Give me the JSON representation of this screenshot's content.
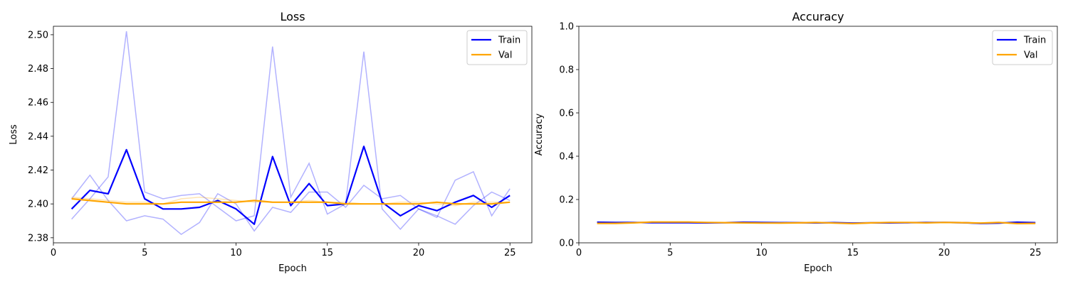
{
  "chart_data": [
    {
      "type": "line",
      "title": "Loss",
      "xlabel": "Epoch",
      "ylabel": "Loss",
      "xlim": [
        0,
        26.2
      ],
      "ylim": [
        2.377,
        2.505
      ],
      "xticks": [
        0,
        5,
        10,
        15,
        20,
        25
      ],
      "yticks": [
        2.38,
        2.4,
        2.42,
        2.44,
        2.46,
        2.48,
        2.5
      ],
      "ytick_labels": [
        "2.38",
        "2.40",
        "2.42",
        "2.44",
        "2.46",
        "2.48",
        "2.50"
      ],
      "legend": {
        "placement": "top-right",
        "entries": [
          "Train",
          "Val"
        ]
      },
      "x": [
        1,
        2,
        3,
        4,
        5,
        6,
        7,
        8,
        9,
        10,
        11,
        12,
        13,
        14,
        15,
        16,
        17,
        18,
        19,
        20,
        21,
        22,
        23,
        24,
        25
      ],
      "series": [
        {
          "name": "Train",
          "color": "#0000ff",
          "values": [
            2.397,
            2.408,
            2.406,
            2.432,
            2.403,
            2.397,
            2.397,
            2.398,
            2.402,
            2.397,
            2.388,
            2.428,
            2.399,
            2.412,
            2.399,
            2.4,
            2.434,
            2.401,
            2.393,
            2.399,
            2.396,
            2.401,
            2.405,
            2.398,
            2.405
          ]
        },
        {
          "name": "Val",
          "color": "#ffa500",
          "values": [
            2.403,
            2.402,
            2.401,
            2.4,
            2.4,
            2.4,
            2.401,
            2.401,
            2.401,
            2.401,
            2.402,
            2.401,
            2.401,
            2.401,
            2.401,
            2.4,
            2.4,
            2.4,
            2.4,
            2.4,
            2.401,
            2.4,
            2.4,
            2.4,
            2.401
          ]
        }
      ],
      "background_runs": [
        {
          "color": "#0000ff",
          "values": [
            2.391,
            2.403,
            2.416,
            2.502,
            2.407,
            2.403,
            2.405,
            2.406,
            2.398,
            2.39,
            2.393,
            2.493,
            2.404,
            2.424,
            2.394,
            2.4,
            2.49,
            2.397,
            2.385,
            2.397,
            2.393,
            2.388,
            2.399,
            2.407,
            2.402
          ]
        },
        {
          "color": "#0000ff",
          "values": [
            2.403,
            2.417,
            2.402,
            2.39,
            2.393,
            2.391,
            2.382,
            2.389,
            2.406,
            2.4,
            2.384,
            2.398,
            2.395,
            2.407,
            2.407,
            2.398,
            2.411,
            2.403,
            2.405,
            2.397,
            2.392,
            2.414,
            2.419,
            2.393,
            2.409
          ]
        },
        {
          "color": "#ffa500",
          "values": [
            2.404,
            2.403,
            2.402,
            2.401,
            2.401,
            2.4,
            2.403,
            2.404,
            2.403,
            2.402,
            2.401,
            2.401,
            2.401,
            2.402,
            2.401,
            2.401,
            2.4,
            2.4,
            2.401,
            2.401,
            2.4,
            2.399,
            2.401,
            2.401,
            2.401
          ]
        }
      ]
    },
    {
      "type": "line",
      "title": "Accuracy",
      "xlabel": "Epoch",
      "ylabel": "Accuracy",
      "xlim": [
        0,
        26.2
      ],
      "ylim": [
        0.0,
        1.0
      ],
      "xticks": [
        0,
        5,
        10,
        15,
        20,
        25
      ],
      "yticks": [
        0.0,
        0.2,
        0.4,
        0.6,
        0.8,
        1.0
      ],
      "ytick_labels": [
        "0.0",
        "0.2",
        "0.4",
        "0.6",
        "0.8",
        "1.0"
      ],
      "legend": {
        "placement": "top-right",
        "entries": [
          "Train",
          "Val"
        ]
      },
      "x": [
        1,
        2,
        3,
        4,
        5,
        6,
        7,
        8,
        9,
        10,
        11,
        12,
        13,
        14,
        15,
        16,
        17,
        18,
        19,
        20,
        21,
        22,
        23,
        24,
        25
      ],
      "series": [
        {
          "name": "Train",
          "color": "#0000ff",
          "values": [
            0.095,
            0.094,
            0.094,
            0.093,
            0.093,
            0.093,
            0.092,
            0.093,
            0.095,
            0.094,
            0.093,
            0.093,
            0.092,
            0.093,
            0.091,
            0.092,
            0.092,
            0.093,
            0.094,
            0.094,
            0.093,
            0.09,
            0.091,
            0.095,
            0.093
          ]
        },
        {
          "name": "Val",
          "color": "#ffa500",
          "values": [
            0.09,
            0.09,
            0.092,
            0.096,
            0.096,
            0.096,
            0.094,
            0.093,
            0.092,
            0.091,
            0.091,
            0.092,
            0.094,
            0.091,
            0.089,
            0.092,
            0.094,
            0.094,
            0.092,
            0.094,
            0.093,
            0.091,
            0.094,
            0.089,
            0.09
          ]
        }
      ],
      "background_runs": [
        {
          "color": "#0000ff",
          "values": [
            0.094,
            0.093,
            0.093,
            0.093,
            0.092,
            0.092,
            0.091,
            0.093,
            0.095,
            0.094,
            0.093,
            0.092,
            0.091,
            0.092,
            0.09,
            0.091,
            0.092,
            0.092,
            0.093,
            0.093,
            0.092,
            0.089,
            0.09,
            0.094,
            0.092
          ]
        },
        {
          "color": "#ffa500",
          "values": [
            0.091,
            0.09,
            0.093,
            0.097,
            0.096,
            0.095,
            0.093,
            0.092,
            0.093,
            0.092,
            0.09,
            0.091,
            0.095,
            0.092,
            0.09,
            0.093,
            0.095,
            0.093,
            0.091,
            0.095,
            0.094,
            0.092,
            0.095,
            0.09,
            0.091
          ]
        }
      ]
    }
  ]
}
